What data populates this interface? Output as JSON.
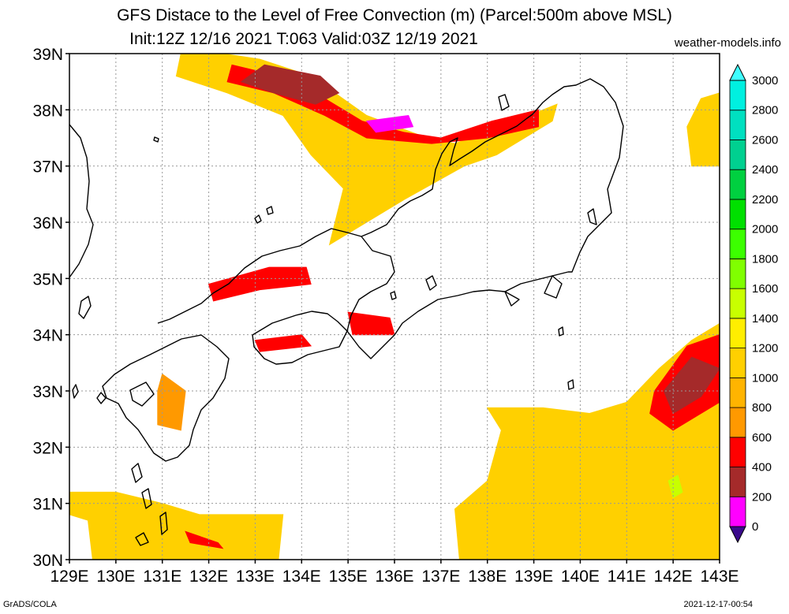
{
  "title_line1": "GFS Distace to the Level of Free Convection (m) (Parcel:500m above MSL)",
  "title_line2": "Init:12Z 12/16 2021 T:063 Valid:03Z 12/19 2021",
  "credit": "weather-models.info",
  "footer_left": "GrADS/COLA",
  "footer_right": "2021-12-17-00:54",
  "chart_data": {
    "type": "heatmap",
    "title": "GFS Distace to the Level of Free Convection (m) (Parcel:500m above MSL)",
    "subtitle": "Init:12Z 12/16 2021 T:063 Valid:03Z 12/19 2021",
    "x_ticks": [
      "129E",
      "130E",
      "131E",
      "132E",
      "133E",
      "134E",
      "135E",
      "136E",
      "137E",
      "138E",
      "139E",
      "140E",
      "141E",
      "142E",
      "143E"
    ],
    "y_ticks": [
      "30N",
      "31N",
      "32N",
      "33N",
      "34N",
      "35N",
      "36N",
      "37N",
      "38N",
      "39N"
    ],
    "xlim": [
      129,
      143
    ],
    "ylim": [
      30,
      39
    ],
    "colorbar": {
      "levels": [
        "0",
        "200",
        "400",
        "600",
        "800",
        "1000",
        "1200",
        "1400",
        "1600",
        "1800",
        "2000",
        "2200",
        "2400",
        "2600",
        "2800",
        "3000"
      ],
      "colors": [
        "#3a0a8c",
        "#ff00ff",
        "#a52a2a",
        "#ff0000",
        "#ff9900",
        "#ffb400",
        "#ffd000",
        "#ffee00",
        "#c8ff00",
        "#80ff00",
        "#3cff00",
        "#00e000",
        "#00d040",
        "#00d090",
        "#00e0c0",
        "#00f0e0",
        "#40ffff"
      ]
    },
    "regions": [
      {
        "name": "sea-of-japan-band",
        "value": 1100,
        "polygon": [
          [
            132.3,
            39
          ],
          [
            133.1,
            38.9
          ],
          [
            134.2,
            38.6
          ],
          [
            135.4,
            37.9
          ],
          [
            136.7,
            37.5
          ],
          [
            137.3,
            37.4
          ],
          [
            138.3,
            37.7
          ],
          [
            139.5,
            38.1
          ],
          [
            139.4,
            37.8
          ],
          [
            138.2,
            37.2
          ],
          [
            137.5,
            37.0
          ],
          [
            136.2,
            36.4
          ],
          [
            135.2,
            35.9
          ],
          [
            134.6,
            35.6
          ],
          [
            134.9,
            36.6
          ],
          [
            134.2,
            37.2
          ],
          [
            133.6,
            37.9
          ],
          [
            132.4,
            38.3
          ],
          [
            131.3,
            38.6
          ],
          [
            131.4,
            39
          ]
        ]
      },
      {
        "name": "sea-of-japan-red",
        "value": 500,
        "polygon": [
          [
            132.5,
            38.8
          ],
          [
            133.5,
            38.6
          ],
          [
            134.5,
            38.2
          ],
          [
            135.3,
            37.8
          ],
          [
            136.2,
            37.6
          ],
          [
            137.0,
            37.5
          ],
          [
            138.1,
            37.8
          ],
          [
            139.1,
            38.0
          ],
          [
            139.1,
            37.7
          ],
          [
            138.0,
            37.5
          ],
          [
            136.8,
            37.4
          ],
          [
            135.4,
            37.5
          ],
          [
            134.5,
            37.9
          ],
          [
            133.4,
            38.3
          ],
          [
            132.4,
            38.5
          ]
        ]
      },
      {
        "name": "sea-of-japan-brown",
        "value": 350,
        "polygon": [
          [
            133.2,
            38.8
          ],
          [
            134.4,
            38.6
          ],
          [
            134.8,
            38.3
          ],
          [
            134.3,
            38.1
          ],
          [
            133.4,
            38.3
          ],
          [
            132.7,
            38.5
          ]
        ]
      },
      {
        "name": "noto-magenta",
        "value": 150,
        "polygon": [
          [
            135.4,
            37.8
          ],
          [
            136.3,
            37.9
          ],
          [
            136.4,
            37.7
          ],
          [
            135.6,
            37.6
          ]
        ]
      },
      {
        "name": "chugoku-band",
        "value": 500,
        "polygon": [
          [
            132.0,
            34.9
          ],
          [
            133.3,
            35.2
          ],
          [
            134.1,
            35.2
          ],
          [
            134.2,
            34.9
          ],
          [
            133.1,
            34.8
          ],
          [
            132.1,
            34.6
          ]
        ]
      },
      {
        "name": "kii-red",
        "value": 450,
        "polygon": [
          [
            135.0,
            34.4
          ],
          [
            135.9,
            34.3
          ],
          [
            136.0,
            34.0
          ],
          [
            135.1,
            34.0
          ]
        ]
      },
      {
        "name": "shikoku-red",
        "value": 500,
        "polygon": [
          [
            133.0,
            33.9
          ],
          [
            134.0,
            34.0
          ],
          [
            134.2,
            33.8
          ],
          [
            133.1,
            33.7
          ]
        ]
      },
      {
        "name": "kyushu-band",
        "value": 700,
        "polygon": [
          [
            131.0,
            33.3
          ],
          [
            131.5,
            33.0
          ],
          [
            131.4,
            32.3
          ],
          [
            130.9,
            32.4
          ],
          [
            130.9,
            33.0
          ]
        ]
      },
      {
        "name": "southwest-ocean",
        "value": 1100,
        "polygon": [
          [
            129.0,
            31.2
          ],
          [
            130.0,
            31.2
          ],
          [
            131.0,
            31.0
          ],
          [
            131.8,
            30.8
          ],
          [
            133.0,
            30.8
          ],
          [
            133.6,
            30.8
          ],
          [
            133.5,
            30.0
          ],
          [
            129.5,
            30.0
          ],
          [
            129.4,
            30.7
          ],
          [
            129.0,
            30.8
          ]
        ]
      },
      {
        "name": "tanegashima-red",
        "value": 500,
        "polygon": [
          [
            131.5,
            30.5
          ],
          [
            132.2,
            30.3
          ],
          [
            132.3,
            30.2
          ],
          [
            131.6,
            30.3
          ]
        ]
      },
      {
        "name": "pacific-east",
        "value": 1100,
        "polygon": [
          [
            138.0,
            32.7
          ],
          [
            139.2,
            32.7
          ],
          [
            140.2,
            32.6
          ],
          [
            141.0,
            32.8
          ],
          [
            141.7,
            33.4
          ],
          [
            142.4,
            33.9
          ],
          [
            143,
            34.2
          ],
          [
            143,
            30.0
          ],
          [
            137.4,
            30.0
          ],
          [
            137.3,
            30.9
          ],
          [
            138.0,
            31.4
          ],
          [
            138.3,
            32.3
          ]
        ]
      },
      {
        "name": "pacific-east-red",
        "value": 500,
        "polygon": [
          [
            141.6,
            33.0
          ],
          [
            142.3,
            33.8
          ],
          [
            143,
            34.0
          ],
          [
            143,
            32.8
          ],
          [
            142.0,
            32.3
          ],
          [
            141.5,
            32.6
          ]
        ]
      },
      {
        "name": "pacific-east-brown",
        "value": 350,
        "polygon": [
          [
            141.8,
            33.0
          ],
          [
            142.4,
            33.6
          ],
          [
            143,
            33.4
          ],
          [
            142.6,
            32.9
          ],
          [
            142.0,
            32.6
          ]
        ]
      },
      {
        "name": "pacific-east-highlight",
        "value": 1500,
        "polygon": [
          [
            141.9,
            31.4
          ],
          [
            142.1,
            31.5
          ],
          [
            142.2,
            31.2
          ],
          [
            142.0,
            31.1
          ]
        ]
      },
      {
        "name": "northeast-patch",
        "value": 1100,
        "polygon": [
          [
            142.6,
            38.2
          ],
          [
            143,
            38.3
          ],
          [
            143,
            37.0
          ],
          [
            142.4,
            37.0
          ],
          [
            142.3,
            37.7
          ]
        ]
      }
    ]
  }
}
